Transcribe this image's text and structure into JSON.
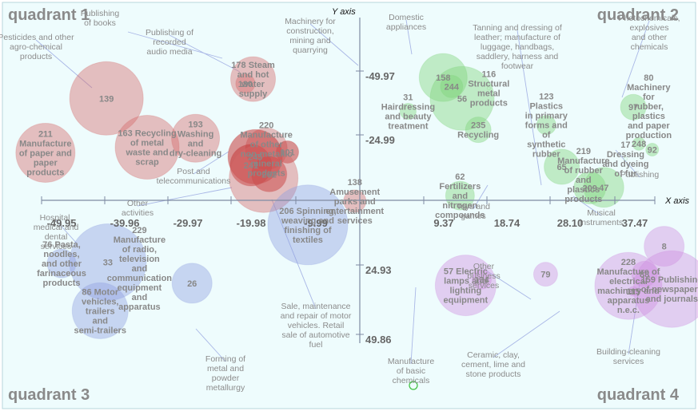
{
  "chart_data": {
    "type": "scatter",
    "xlabel": "X axis",
    "ylabel": "Y axis",
    "xlim": [
      -49.95,
      37.47
    ],
    "ylim": [
      -49.86,
      49.86
    ],
    "x_ticks": [
      "-49.95",
      "-39.96",
      "-29.97",
      "-19.98",
      "-9.99",
      "9.37",
      "18.74",
      "28.10",
      "37.47"
    ],
    "y_ticks": [
      "-49.97",
      "-24.99",
      "24.93",
      "49.86"
    ],
    "quadrants": [
      "quadrant 1",
      "quadrant 2",
      "quadrant 3",
      "quadrant 4"
    ],
    "colors": {
      "q1": "#d46a6a",
      "q1_dark": "#c43a3a",
      "q2": "#7fd47a",
      "q3": "#8f9fdf",
      "q4": "#cf8fdf",
      "axis": "#7f8aa3",
      "background": "#eefcfd"
    },
    "points": [
      {
        "x": -40.7,
        "y": -39.5,
        "size": 46,
        "value": "139",
        "label": "",
        "quadrant": 1
      },
      {
        "x": -34.9,
        "y": -21.0,
        "size": 40,
        "value": "163",
        "label": "Recycling of metal waste and scrap",
        "quadrant": 1
      },
      {
        "x": -49.4,
        "y": -18.9,
        "size": 37,
        "value": "211",
        "label": "Manufacture of paper and paper products",
        "quadrant": 1
      },
      {
        "x": -28.0,
        "y": -24.4,
        "size": 30,
        "value": "193",
        "label": "Washing and dry-cleaning",
        "quadrant": 1
      },
      {
        "x": -19.8,
        "y": -46.8,
        "size": 28,
        "value": "178",
        "label": "Steam and hot water supply",
        "quadrant": 1
      },
      {
        "x": -20.9,
        "y": -45.1,
        "size": 12,
        "value": "180",
        "label": "",
        "quadrant": 1
      },
      {
        "x": -17.9,
        "y": -20.4,
        "size": 26,
        "value": "220",
        "label": "Manufacture of other non-metallic mineral products",
        "quadrant": 1
      },
      {
        "x": -14.9,
        "y": -19.2,
        "size": 14,
        "value": "101",
        "label": "",
        "quadrant": 1
      },
      {
        "x": -19.5,
        "y": -17.4,
        "size": 34,
        "value": "245",
        "label": "",
        "quadrant": 1
      },
      {
        "x": -20.1,
        "y": -14.2,
        "size": 26,
        "value": "241",
        "label": "",
        "quadrant": 1
      },
      {
        "x": -17.5,
        "y": -10.8,
        "size": 22,
        "value": "262",
        "label": "",
        "quadrant": 1
      },
      {
        "x": -18.3,
        "y": -9.3,
        "size": 43,
        "value": "",
        "label": "",
        "quadrant": 1
      },
      {
        "x": -5.3,
        "y": -0.6,
        "size": 14,
        "value": "138",
        "label": "Amusement parks and entertainment services",
        "quadrant": 1
      },
      {
        "x": -12.0,
        "y": 8.4,
        "size": 50,
        "value": "206",
        "label": "Spinning, weaving and finishing of textiles",
        "quadrant": 3
      },
      {
        "x": -40.5,
        "y": 22.5,
        "size": 48,
        "value": "33",
        "label": "",
        "quadrant": 3
      },
      {
        "x": -28.5,
        "y": 30.5,
        "size": 25,
        "value": "26",
        "label": "",
        "quadrant": 3
      },
      {
        "x": -47.1,
        "y": 23.0,
        "size": 18,
        "value": "76",
        "label": "Pasta, noodles, and other farinaceous products",
        "quadrant": 3
      },
      {
        "x": -41.6,
        "y": 40.9,
        "size": 35,
        "value": "86",
        "label": "Motor vehicles, trailers and semi-trailers",
        "quadrant": 3
      },
      {
        "x": -36.0,
        "y": 24.8,
        "size": 3,
        "value": "229",
        "label": "Manufacture of radio, television and communication equipment and apparatus",
        "quadrant": 3
      },
      {
        "x": 7.3,
        "y": -47.4,
        "size": 30,
        "value": "158",
        "label": "",
        "quadrant": 2
      },
      {
        "x": 8.5,
        "y": -44.0,
        "size": 14,
        "value": "244",
        "label": "",
        "quadrant": 2
      },
      {
        "x": 10.0,
        "y": -39.5,
        "size": 40,
        "value": "56",
        "label": "",
        "quadrant": 2
      },
      {
        "x": 13.8,
        "y": -43.3,
        "size": 2,
        "value": "116",
        "label": "Structural metal products",
        "quadrant": 2
      },
      {
        "x": 12.3,
        "y": -27.6,
        "size": 16,
        "value": "235",
        "label": "Recycling",
        "quadrant": 2
      },
      {
        "x": 2.3,
        "y": -34.6,
        "size": 10,
        "value": "31",
        "label": "Hairdressing and beauty treatment",
        "quadrant": 2
      },
      {
        "x": 22.0,
        "y": -29.4,
        "size": 12,
        "value": "123",
        "label": "Plastics in primary forms and of synthetic rubber",
        "quadrant": 2
      },
      {
        "x": 24.2,
        "y": -13.6,
        "size": 22,
        "value": "65",
        "label": "",
        "quadrant": 2
      },
      {
        "x": 28.2,
        "y": -5.6,
        "size": 20,
        "value": "209",
        "label": "",
        "quadrant": 2
      },
      {
        "x": 30.2,
        "y": -5.8,
        "size": 25,
        "value": "47",
        "label": "",
        "quadrant": 2
      },
      {
        "x": 27.3,
        "y": -10.6,
        "size": 2,
        "value": "219",
        "label": "Manufacture of rubber and plastics products",
        "quadrant": 2
      },
      {
        "x": 34.4,
        "y": -36.2,
        "size": 16,
        "value": "97",
        "label": "",
        "quadrant": 2
      },
      {
        "x": 36.6,
        "y": -36.6,
        "size": 2,
        "value": "80",
        "label": "Machinery for rubber, plastics and paper production",
        "quadrant": 2
      },
      {
        "x": 35.2,
        "y": -22.3,
        "size": 8,
        "value": "248",
        "label": "",
        "quadrant": 2
      },
      {
        "x": 37.1,
        "y": -20.1,
        "size": 8,
        "value": "92",
        "label": "",
        "quadrant": 2
      },
      {
        "x": 33.3,
        "y": -16.6,
        "size": 2,
        "value": "17",
        "label": "Dressing and dyeing of fur",
        "quadrant": 2
      },
      {
        "x": 9.7,
        "y": -2.7,
        "size": 18,
        "value": "62",
        "label": "Fertilizers and nitrogen compounds",
        "quadrant": 2
      },
      {
        "x": 10.5,
        "y": 31.3,
        "size": 38,
        "value": "57",
        "label": "Electric lamps and lighting equipment",
        "quadrant": 4
      },
      {
        "x": 12.8,
        "y": 29.1,
        "size": 12,
        "value": "134",
        "label": "",
        "quadrant": 4
      },
      {
        "x": 33.7,
        "y": 31.5,
        "size": 42,
        "value": "228",
        "label": "Manufacture of electrical machinery and apparatus n.e.c.",
        "quadrant": 4
      },
      {
        "x": 34.4,
        "y": 33.5,
        "size": 6,
        "value": "115",
        "label": "",
        "quadrant": 4
      },
      {
        "x": 21.9,
        "y": 27.1,
        "size": 15,
        "value": "79",
        "label": "",
        "quadrant": 4
      },
      {
        "x": 38.8,
        "y": 16.5,
        "size": 25,
        "value": "8",
        "label": "",
        "quadrant": 4
      },
      {
        "x": 39.9,
        "y": 32.7,
        "size": 48,
        "value": "159",
        "label": "Publishing of newspapers and journals",
        "quadrant": 4
      },
      {
        "x": 36.0,
        "y": 27.0,
        "size": 16,
        "value": "88",
        "label": "",
        "quadrant": 4
      }
    ],
    "callouts": [
      {
        "text": "Publishing of books",
        "quadrant": 1
      },
      {
        "text": "Publishing of recorded audio media",
        "quadrant": 1
      },
      {
        "text": "Pesticides and other agro-chemical products",
        "quadrant": 1
      },
      {
        "text": "Post and telecommunications",
        "quadrant": 1
      },
      {
        "text": "Other activities",
        "quadrant": 1
      },
      {
        "text": "Machinery for construction, mining and quarrying",
        "quadrant": 2
      },
      {
        "text": "Domestic appliances",
        "quadrant": 2
      },
      {
        "text": "Tanning and dressing of leather; manufacture of luggage, handbags, saddlery, harness and footwear",
        "quadrant": 2
      },
      {
        "text": "Photochemicals, explosives and other chemicals",
        "quadrant": 2
      },
      {
        "text": "Publishing",
        "quadrant": 2
      },
      {
        "text": "Musical instruments",
        "quadrant": 2
      },
      {
        "text": "Toys and games",
        "quadrant": 2
      },
      {
        "text": "Hospital, medical and dental services",
        "quadrant": 3
      },
      {
        "text": "Forming of metal and powder metallurgy",
        "quadrant": 3
      },
      {
        "text": "Sale, maintenance and repair of motor vehicles. Retail sale of automotive fuel",
        "quadrant": 3
      },
      {
        "text": "Manufacture of basic chemicals",
        "quadrant": 4
      },
      {
        "text": "Other business services",
        "quadrant": 4
      },
      {
        "text": "Ceramic, clay, cement, lime and stone products",
        "quadrant": 4
      },
      {
        "text": "Building-cleaning services",
        "quadrant": 4
      }
    ]
  }
}
